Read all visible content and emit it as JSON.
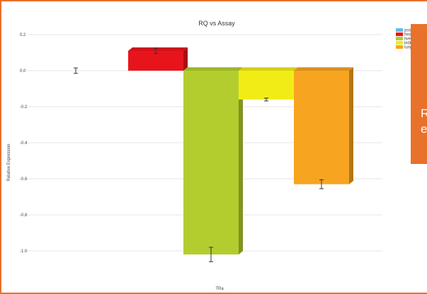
{
  "chart_data": {
    "type": "bar",
    "title": "RQ vs Assay",
    "xlabel": "TRa",
    "ylabel": "Relative Expression",
    "ylim": [
      -1.2,
      0.25
    ],
    "yticks": [
      0.2,
      0.0,
      -0.2,
      -0.4,
      -0.6,
      -0.8,
      -1.0
    ],
    "ytick_labels": [
      "0.2",
      "0.0",
      "-0.2",
      "-0.4",
      "-0.6",
      "-0.8",
      "-1.0"
    ],
    "grid": true,
    "legend_position": "top-right",
    "series": [
      {
        "name": "posi",
        "value": 0.0,
        "error": 0.015,
        "color": "#5bc0e8"
      },
      {
        "name": "hear",
        "value": 0.11,
        "error": 0.015,
        "color": "#e8141c"
      },
      {
        "name": "liver",
        "value": -1.02,
        "error": 0.04,
        "color": "#b3cd2e"
      },
      {
        "name": "kidn",
        "value": -0.16,
        "error": 0.008,
        "color": "#f2ec16"
      },
      {
        "name": "lung",
        "value": -0.63,
        "error": 0.025,
        "color": "#f7a421"
      }
    ]
  },
  "overlay": {
    "text": "R\ne",
    "color": "#e8712b"
  }
}
